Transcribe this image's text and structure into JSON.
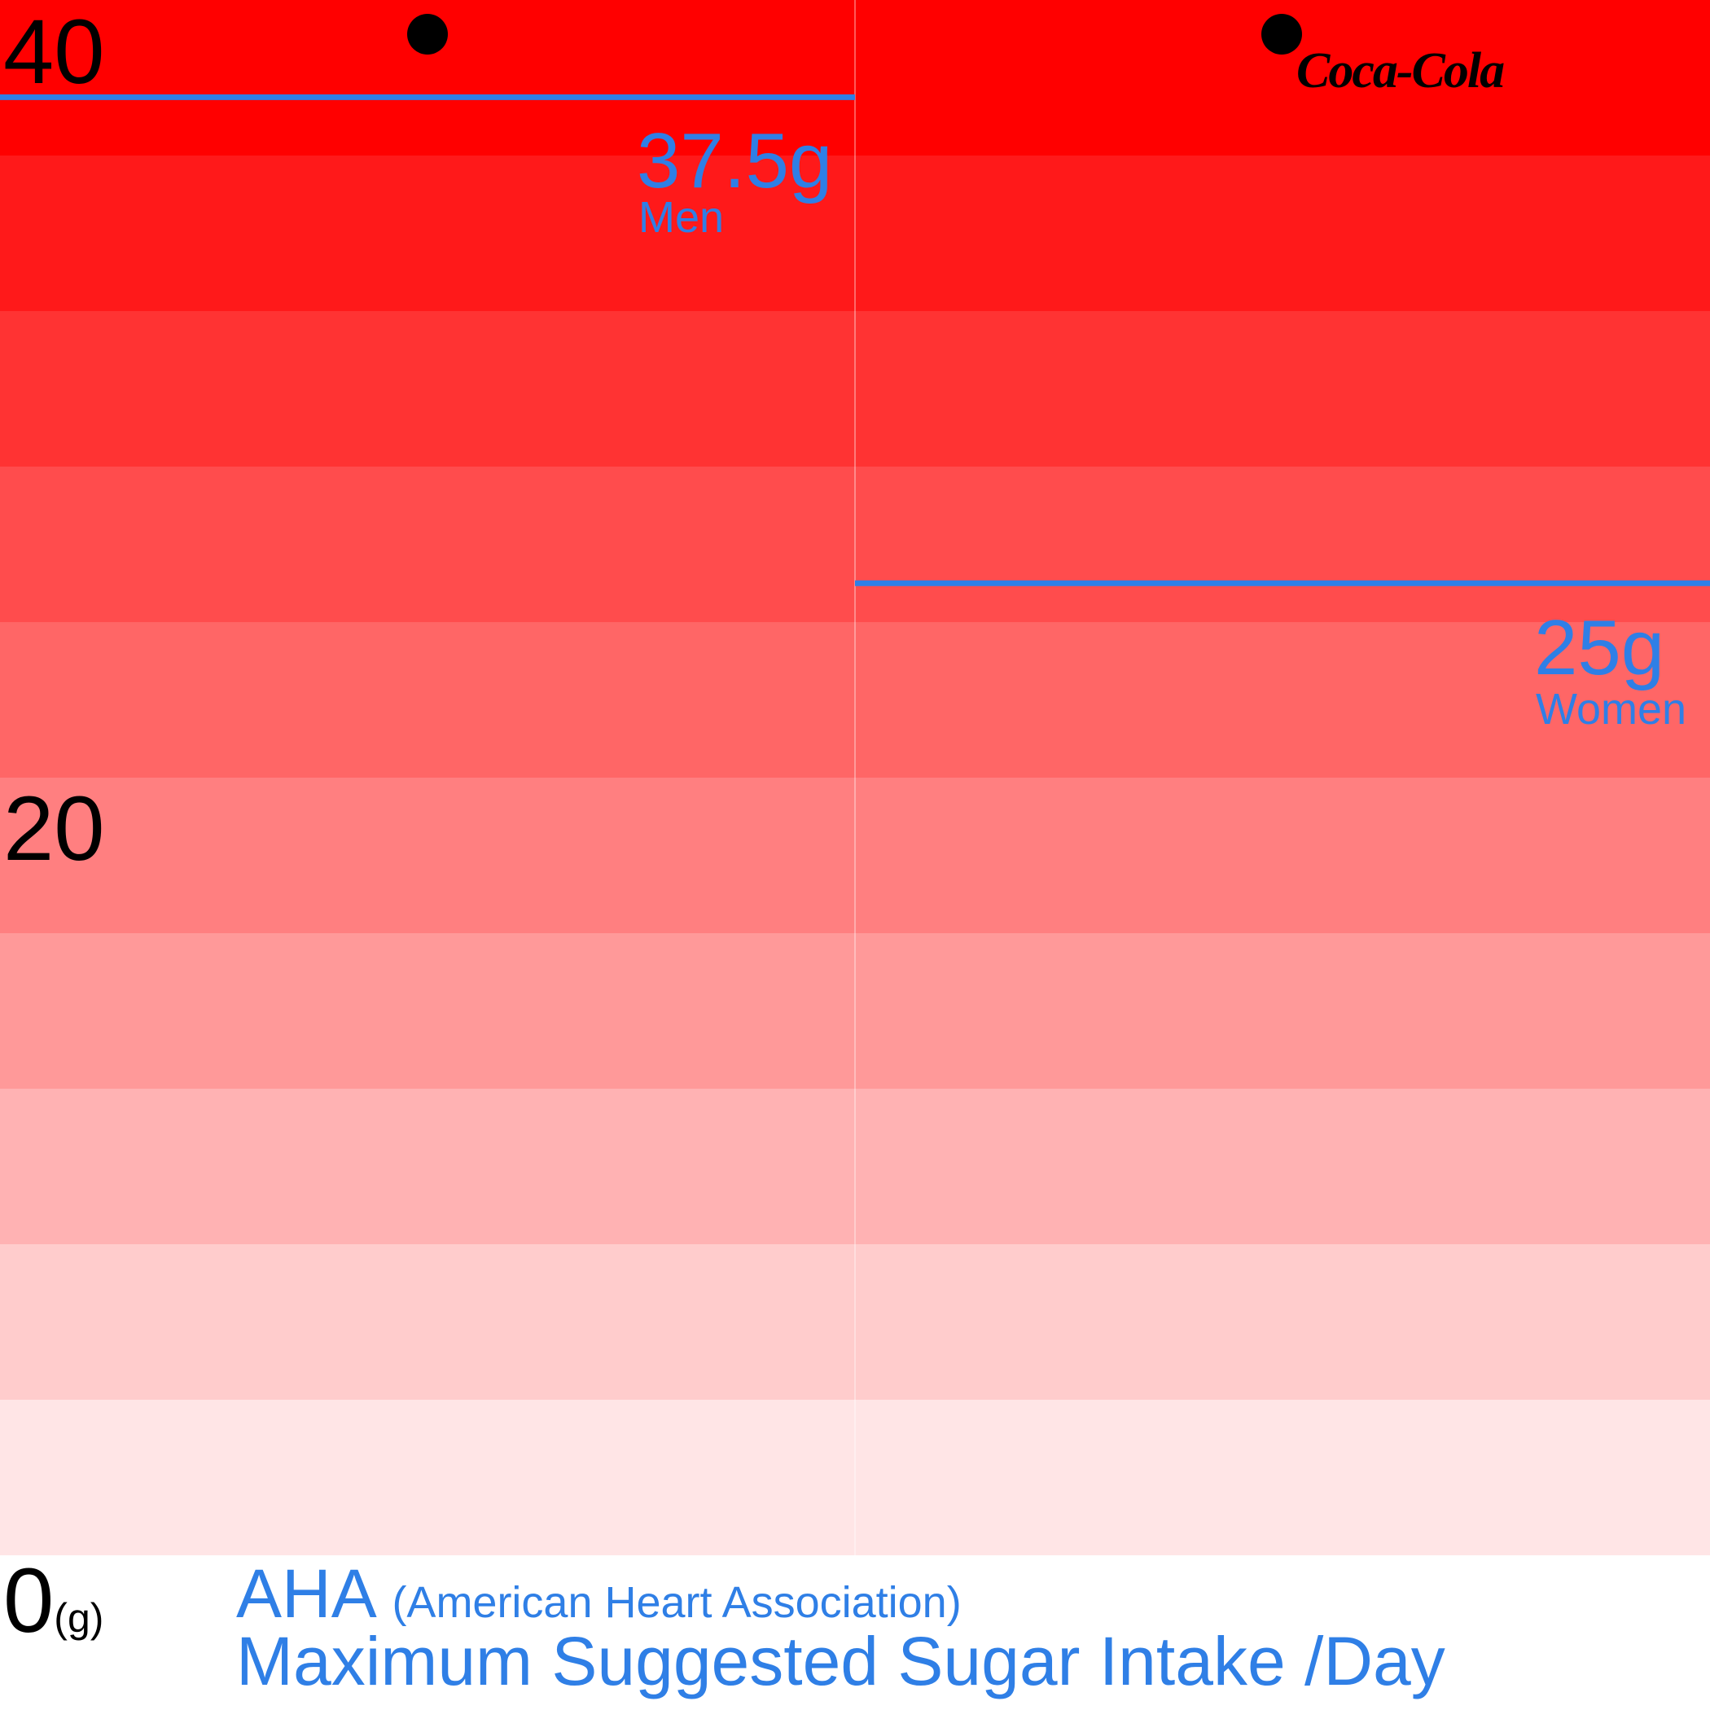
{
  "colors": {
    "accent": "#2f7fe6",
    "band_light": "#ffe5e6",
    "band_dark": "#ff0000",
    "divider": "#ffffff",
    "text": "#000000"
  },
  "chart_data": {
    "type": "bar",
    "xlabel": "",
    "ylabel": "",
    "ylim": [
      0,
      40
    ],
    "y_unit": "(g)",
    "y_tick_labels": [
      "0",
      "20",
      "40"
    ],
    "background_bands": 10,
    "categories": [
      "Men",
      "Women"
    ],
    "values": [
      37.5,
      25
    ],
    "value_labels": [
      "37.5g",
      "25g"
    ],
    "markers": [
      {
        "category": "Men",
        "value": 40
      },
      {
        "category": "Women",
        "value": 40
      }
    ],
    "grid": false,
    "legend": "none"
  },
  "caption": {
    "org": "AHA",
    "org_full": "(American Heart Association)",
    "line2": "Maximum Suggested Sugar Intake /Day"
  },
  "logo": {
    "text": "Coca-Cola",
    "icon": "coca-cola-logo-icon"
  }
}
